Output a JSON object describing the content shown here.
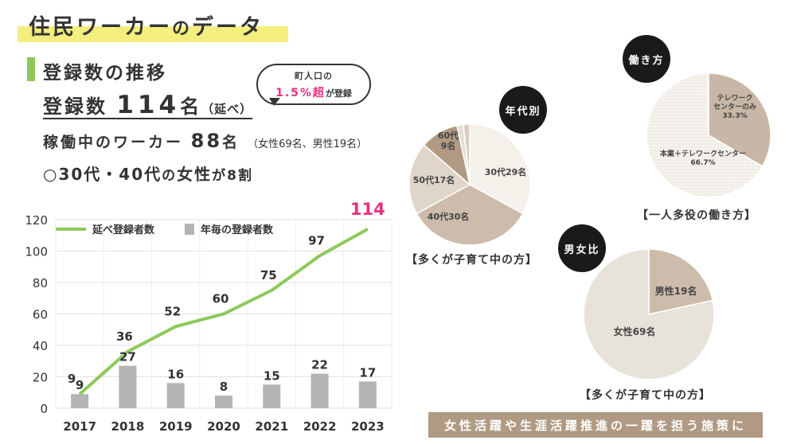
{
  "page": {
    "title_main": "住民ワーカー",
    "title_small": "の",
    "title_end": "データ"
  },
  "section": {
    "heading": "登録数の推移",
    "registered_label": "登録数",
    "registered_value": "114",
    "registered_unit": "名",
    "registered_note": "（延べ）",
    "active_label": "稼働中のワーカー",
    "active_value": "88",
    "active_unit": "名",
    "active_note": "（女性69名、男性19名）",
    "women_prefix": "○30代・40代",
    "women_mid": "の",
    "women_main": "女性",
    "women_suffix": "が8割"
  },
  "bubble": {
    "line1": "町人口の",
    "highlight": "1.5%超",
    "line2_mid": "が",
    "line2_end": "登録"
  },
  "footer": "女性活躍や生涯活躍推進の一躍を担う施策に",
  "colors": {
    "line": "#8dc95a",
    "bar": "#b4b4b4",
    "highlight": "#e8307f",
    "pie_age": [
      "#f4f0ea",
      "#cdbcab",
      "#e0d5c9",
      "#b09a83",
      "#e6ddd3",
      "#d8cdbf"
    ],
    "pie_style": [
      "#c8b7a6",
      "#f4f1ec"
    ],
    "pie_gender": [
      "#cdbcab",
      "#e8e3da"
    ]
  },
  "chart_data": [
    {
      "type": "bar+line",
      "categories": [
        "2017",
        "2018",
        "2019",
        "2020",
        "2021",
        "2022",
        "2023"
      ],
      "series": [
        {
          "name": "延べ登録者数",
          "type": "line",
          "values": [
            9,
            36,
            52,
            60,
            75,
            97,
            114
          ]
        },
        {
          "name": "年毎の登録者数",
          "type": "bar",
          "values": [
            9,
            27,
            16,
            8,
            15,
            22,
            17
          ]
        }
      ],
      "yticks": [
        "0",
        "20",
        "40",
        "60",
        "80",
        "100",
        "120"
      ],
      "ylim": [
        0,
        120
      ],
      "grid": true,
      "legend": "top-left",
      "last_label": "114"
    },
    {
      "type": "pie",
      "badge": "年代別",
      "caption": "【多くが子育て中の方】",
      "slices": [
        {
          "label": "30代29名",
          "value": 29
        },
        {
          "label": "40代30名",
          "value": 30
        },
        {
          "label": "50代17名",
          "value": 17
        },
        {
          "label": "60代\n9名",
          "value": 9
        },
        {
          "label": "",
          "value": 1.5
        },
        {
          "label": "",
          "value": 1.5
        }
      ]
    },
    {
      "type": "pie",
      "badge": "働き方",
      "caption": "【一人多役の働き方】",
      "slices": [
        {
          "label": "テレワーク\nセンターのみ\n33.3%",
          "value": 33.3
        },
        {
          "label": "本業＋テレワークセンター\n66.7%",
          "value": 66.7
        }
      ]
    },
    {
      "type": "pie",
      "badge": "男女比",
      "caption": "【多くが子育て中の方】",
      "slices": [
        {
          "label": "男性19名",
          "value": 19
        },
        {
          "label": "女性69名",
          "value": 69
        }
      ]
    }
  ]
}
